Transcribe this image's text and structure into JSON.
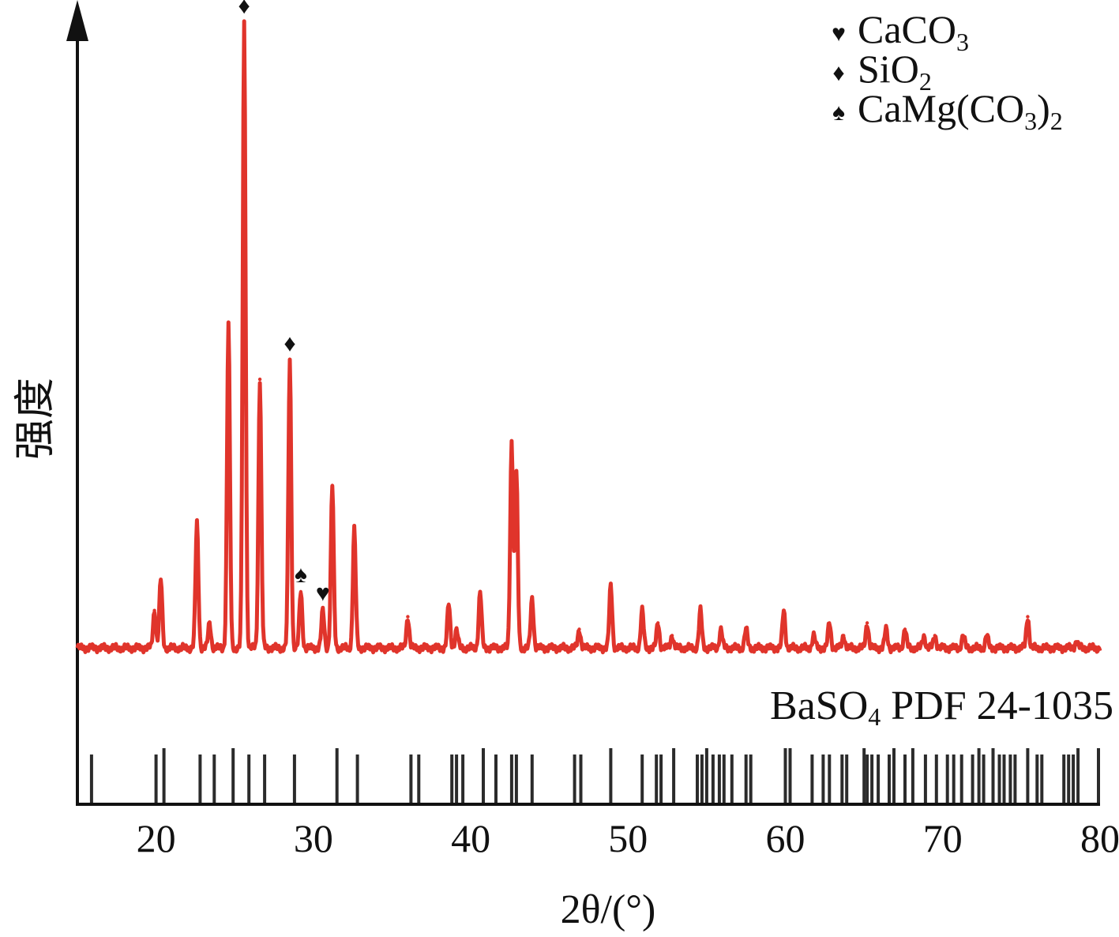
{
  "chart_data": {
    "type": "line",
    "xlabel": "2θ/(°)",
    "ylabel": "强度",
    "xlim": [
      15,
      80
    ],
    "x_ticks": [
      "20",
      "30",
      "40",
      "50",
      "60",
      "70",
      "80"
    ],
    "y_ticks": [],
    "grid": false,
    "legend_position": "top-right",
    "colors": {
      "pattern": "#e0342b",
      "reference": "#2b2b2b",
      "axis": "#111111"
    },
    "legend": [
      {
        "symbol": "heart",
        "glyph": "♥",
        "label": "CaCO",
        "sub": "3",
        "tail": ""
      },
      {
        "symbol": "diamond",
        "glyph": "♦",
        "label": "SiO",
        "sub": "2",
        "tail": ""
      },
      {
        "symbol": "spade",
        "glyph": "♠",
        "label": "CaMg(CO",
        "sub": "3",
        "tail": ")2"
      }
    ],
    "reference_label": {
      "prefix": "BaSO",
      "sub": "4",
      "suffix": " PDF 24-1035"
    },
    "series": [
      {
        "style": "measured pattern",
        "baseline": 0.02,
        "peaks": [
          {
            "x": 19.9,
            "y": 0.06
          },
          {
            "x": 20.3,
            "y": 0.11
          },
          {
            "x": 22.6,
            "y": 0.2
          },
          {
            "x": 23.4,
            "y": 0.04
          },
          {
            "x": 24.6,
            "y": 0.52
          },
          {
            "x": 25.6,
            "y": 1.0
          },
          {
            "x": 26.6,
            "y": 0.43
          },
          {
            "x": 28.5,
            "y": 0.46
          },
          {
            "x": 29.2,
            "y": 0.09
          },
          {
            "x": 30.6,
            "y": 0.06
          },
          {
            "x": 31.2,
            "y": 0.26
          },
          {
            "x": 32.6,
            "y": 0.19
          },
          {
            "x": 36.0,
            "y": 0.05
          },
          {
            "x": 38.6,
            "y": 0.07
          },
          {
            "x": 39.1,
            "y": 0.03
          },
          {
            "x": 40.6,
            "y": 0.09
          },
          {
            "x": 42.6,
            "y": 0.33
          },
          {
            "x": 42.9,
            "y": 0.28
          },
          {
            "x": 43.9,
            "y": 0.08
          },
          {
            "x": 46.9,
            "y": 0.03
          },
          {
            "x": 48.9,
            "y": 0.1
          },
          {
            "x": 50.9,
            "y": 0.06
          },
          {
            "x": 51.9,
            "y": 0.04
          },
          {
            "x": 52.8,
            "y": 0.02
          },
          {
            "x": 54.6,
            "y": 0.06
          },
          {
            "x": 55.9,
            "y": 0.03
          },
          {
            "x": 57.5,
            "y": 0.03
          },
          {
            "x": 59.9,
            "y": 0.06
          },
          {
            "x": 61.8,
            "y": 0.02
          },
          {
            "x": 62.8,
            "y": 0.04
          },
          {
            "x": 63.7,
            "y": 0.02
          },
          {
            "x": 65.2,
            "y": 0.04
          },
          {
            "x": 66.4,
            "y": 0.03
          },
          {
            "x": 67.6,
            "y": 0.03
          },
          {
            "x": 68.8,
            "y": 0.02
          },
          {
            "x": 69.5,
            "y": 0.02
          },
          {
            "x": 71.3,
            "y": 0.02
          },
          {
            "x": 72.8,
            "y": 0.02
          },
          {
            "x": 75.4,
            "y": 0.05
          },
          {
            "x": 78.5,
            "y": 0.01
          }
        ]
      },
      {
        "style": "reference sticks",
        "sticks": [
          15.9,
          20.0,
          20.5,
          22.8,
          23.7,
          24.9,
          25.9,
          26.9,
          28.8,
          31.5,
          32.8,
          36.2,
          36.7,
          38.8,
          39.1,
          39.5,
          40.8,
          41.6,
          42.6,
          42.9,
          43.9,
          46.6,
          47.0,
          48.9,
          50.9,
          51.8,
          52.1,
          52.9,
          54.4,
          54.7,
          55.0,
          55.4,
          55.8,
          56.1,
          56.6,
          57.5,
          57.8,
          60.0,
          60.3,
          61.7,
          62.4,
          62.8,
          63.6,
          63.9,
          65.0,
          65.2,
          65.5,
          65.9,
          66.6,
          66.9,
          67.6,
          68.1,
          68.9,
          69.6,
          70.3,
          70.7,
          71.2,
          71.9,
          72.3,
          72.6,
          73.2,
          73.6,
          73.9,
          74.3,
          74.6,
          75.4,
          76.0,
          76.3,
          77.7,
          78.0,
          78.3,
          78.6,
          79.9
        ]
      }
    ],
    "annotations": [
      {
        "symbol": "diamond",
        "glyph": "♦",
        "x": 25.6
      },
      {
        "symbol": "diamond",
        "glyph": "♦",
        "x": 28.5
      },
      {
        "symbol": "spade",
        "glyph": "♠",
        "x": 29.2
      },
      {
        "symbol": "heart",
        "glyph": "♥",
        "x": 30.6
      }
    ]
  }
}
